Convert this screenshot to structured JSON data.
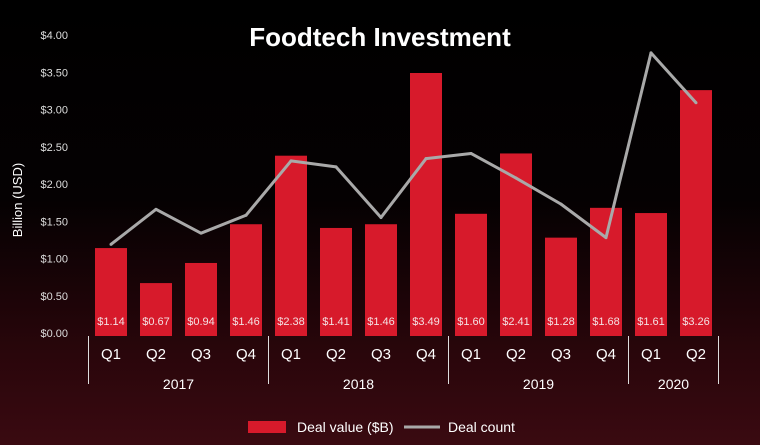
{
  "chart_data": {
    "type": "bar",
    "title": "Foodtech Investment",
    "ylabel": "Billion (USD)",
    "xlabel": "",
    "ylim": [
      0,
      4
    ],
    "yticks": [
      "$0.00",
      "$0.50",
      "$1.00",
      "$1.50",
      "$2.00",
      "$2.50",
      "$3.00",
      "$3.50",
      "$4.00"
    ],
    "categories": [
      "Q1",
      "Q2",
      "Q3",
      "Q4",
      "Q1",
      "Q2",
      "Q3",
      "Q4",
      "Q1",
      "Q2",
      "Q3",
      "Q4",
      "Q1",
      "Q2"
    ],
    "groups": [
      {
        "label": "2017",
        "count": 4
      },
      {
        "label": "2018",
        "count": 4
      },
      {
        "label": "2019",
        "count": 4
      },
      {
        "label": "2020",
        "count": 2
      }
    ],
    "series": [
      {
        "name": "Deal value ($B)",
        "type": "bar",
        "color": "#d71a2b",
        "values": [
          1.14,
          0.67,
          0.94,
          1.46,
          2.38,
          1.41,
          1.46,
          3.49,
          1.6,
          2.41,
          1.28,
          1.68,
          1.61,
          3.26
        ],
        "labels": [
          "$1.14",
          "$0.67",
          "$0.94",
          "$1.46",
          "$2.38",
          "$1.41",
          "$1.46",
          "$3.49",
          "$1.60",
          "$2.41",
          "$1.28",
          "$1.68",
          "$1.61",
          "$3.26"
        ]
      },
      {
        "name": "Deal count",
        "type": "line",
        "color": "#a9a9a9",
        "values": [
          1.19,
          1.66,
          1.34,
          1.58,
          2.31,
          2.23,
          1.55,
          2.34,
          2.41,
          2.08,
          1.73,
          1.28,
          3.76,
          3.09
        ]
      }
    ],
    "legend": "bottom",
    "grid": false
  }
}
